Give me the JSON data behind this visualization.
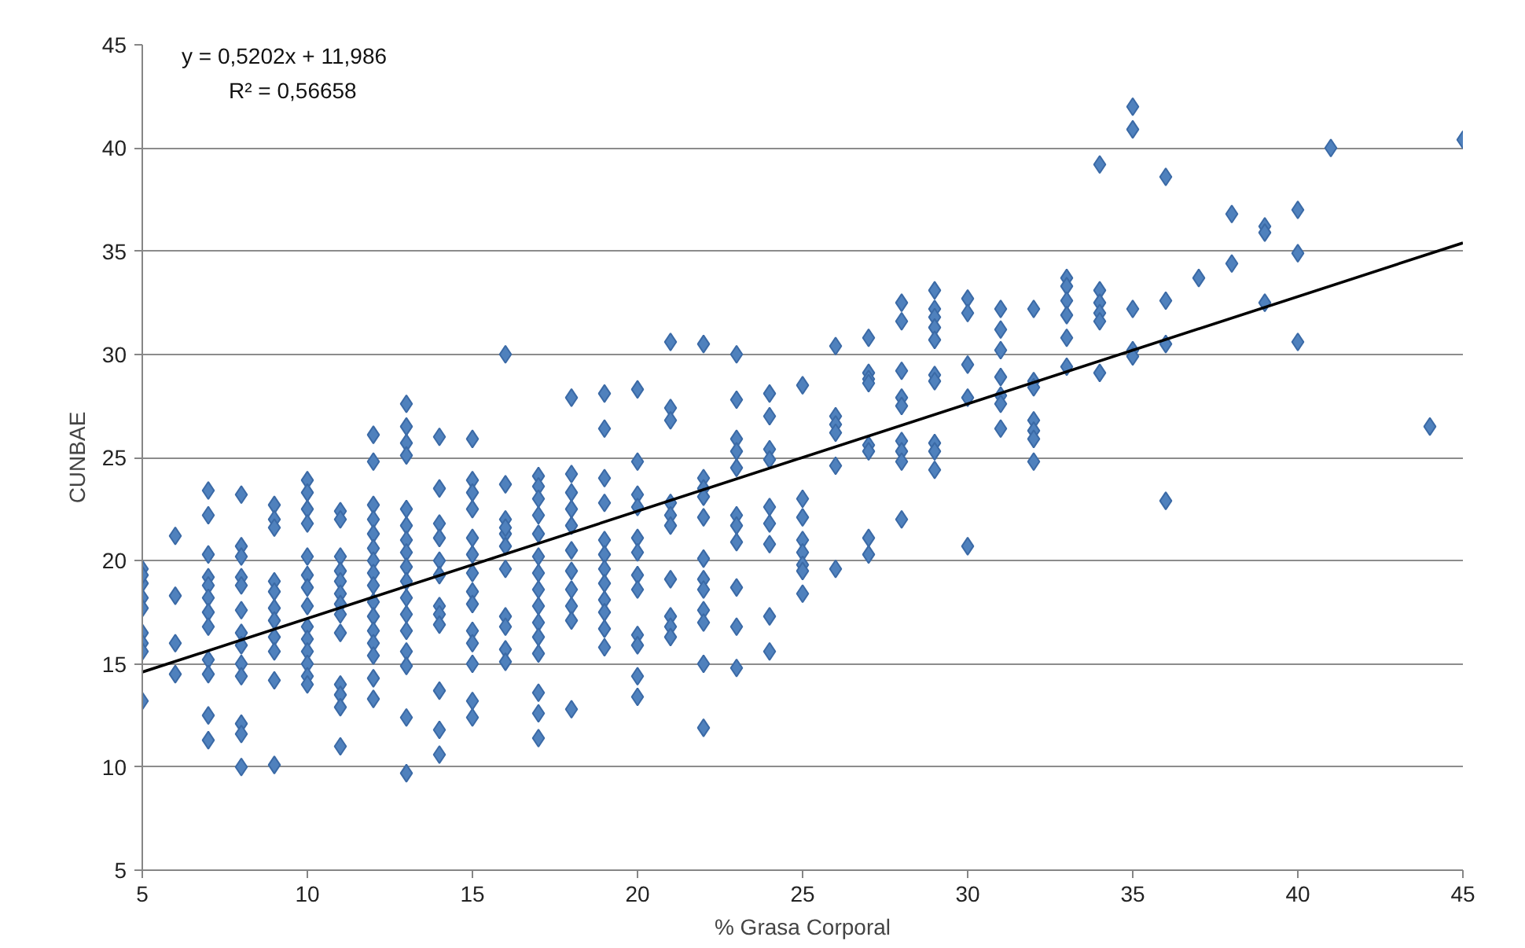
{
  "chart_data": {
    "type": "scatter",
    "xlabel": "% Grasa Corporal",
    "ylabel": "CUNBAE",
    "annotations": [
      "y = 0,5202x + 11,986",
      "R² = 0,56658"
    ],
    "xlim": [
      5,
      45
    ],
    "ylim": [
      5,
      45
    ],
    "xticks": [
      5,
      10,
      15,
      20,
      25,
      30,
      35,
      40,
      45
    ],
    "yticks": [
      5,
      10,
      15,
      20,
      25,
      30,
      35,
      40,
      45
    ],
    "grid": "y",
    "marker": "diamond",
    "series": [
      {
        "color": "#4f81bd",
        "x": [
          5,
          5,
          5,
          5,
          5,
          5,
          5,
          5,
          5,
          6,
          6,
          6,
          6,
          7,
          7,
          7,
          7,
          7,
          7,
          7,
          7,
          7,
          7,
          7,
          7,
          8,
          8,
          8,
          8,
          8,
          8,
          8,
          8,
          8,
          8,
          8,
          8,
          8,
          9,
          9,
          9,
          9,
          9,
          9,
          9,
          9,
          9,
          9,
          9,
          10,
          10,
          10,
          10,
          10,
          10,
          10,
          10,
          10,
          10,
          10,
          10,
          10,
          10,
          11,
          11,
          11,
          11,
          11,
          11,
          11,
          11,
          11,
          11,
          11,
          11,
          11,
          12,
          12,
          12,
          12,
          12,
          12,
          12,
          12,
          12,
          12,
          12,
          12,
          12,
          12,
          12,
          12,
          13,
          13,
          13,
          13,
          13,
          13,
          13,
          13,
          13,
          13,
          13,
          13,
          13,
          13,
          13,
          13,
          13,
          14,
          14,
          14,
          14,
          14,
          14,
          14,
          14,
          14,
          14,
          14,
          14,
          15,
          15,
          15,
          15,
          15,
          15,
          15,
          15,
          15,
          15,
          15,
          15,
          15,
          15,
          16,
          16,
          16,
          16,
          16,
          16,
          16,
          16,
          16,
          16,
          16,
          17,
          17,
          17,
          17,
          17,
          17,
          17,
          17,
          17,
          17,
          17,
          17,
          17,
          17,
          17,
          18,
          18,
          18,
          18,
          18,
          18,
          18,
          18,
          18,
          18,
          18,
          19,
          19,
          19,
          19,
          19,
          19,
          19,
          19,
          19,
          19,
          19,
          19,
          20,
          20,
          20,
          20,
          20,
          20,
          20,
          20,
          20,
          20,
          20,
          20,
          21,
          21,
          21,
          21,
          21,
          21,
          21,
          21,
          21,
          21,
          22,
          22,
          22,
          22,
          22,
          22,
          22,
          22,
          22,
          22,
          22,
          22,
          23,
          23,
          23,
          23,
          23,
          23,
          23,
          23,
          23,
          23,
          23,
          24,
          24,
          24,
          24,
          24,
          24,
          24,
          24,
          24,
          25,
          25,
          25,
          25,
          25,
          25,
          25,
          25,
          26,
          26,
          26,
          26,
          26,
          26,
          27,
          27,
          27,
          27,
          27,
          27,
          27,
          27,
          28,
          28,
          28,
          28,
          28,
          28,
          28,
          28,
          28,
          29,
          29,
          29,
          29,
          29,
          29,
          29,
          29,
          29,
          29,
          30,
          30,
          30,
          30,
          30,
          31,
          31,
          31,
          31,
          31,
          31,
          31,
          32,
          32,
          32,
          32,
          32,
          32,
          32,
          33,
          33,
          33,
          33,
          33,
          33,
          34,
          34,
          34,
          34,
          34,
          34,
          35,
          35,
          35,
          35,
          35,
          36,
          36,
          36,
          36,
          37,
          38,
          38,
          39,
          39,
          39,
          40,
          40,
          40,
          41,
          44,
          45
        ],
        "values": [
          19.6,
          18.9,
          18.2,
          17.7,
          16.5,
          16.0,
          15.6,
          13.2,
          19.3,
          21.2,
          18.3,
          16.0,
          14.5,
          23.4,
          22.2,
          20.3,
          19.2,
          18.8,
          18.2,
          17.5,
          16.8,
          15.2,
          14.5,
          12.5,
          11.3,
          23.2,
          20.7,
          20.2,
          19.2,
          18.8,
          17.6,
          16.5,
          15.9,
          15.0,
          14.4,
          12.1,
          11.6,
          10.0,
          22.7,
          22.0,
          21.6,
          19.0,
          18.5,
          17.7,
          17.1,
          16.3,
          15.6,
          14.2,
          10.1,
          23.9,
          23.3,
          22.5,
          21.8,
          20.2,
          19.3,
          18.7,
          17.8,
          16.8,
          16.2,
          15.6,
          15.0,
          14.4,
          14.0,
          22.4,
          22.0,
          20.2,
          19.5,
          19.0,
          18.4,
          17.9,
          17.4,
          16.5,
          14.0,
          13.5,
          12.9,
          11.0,
          26.1,
          24.8,
          22.7,
          22.0,
          21.3,
          20.6,
          20.0,
          19.4,
          18.8,
          18.0,
          17.3,
          16.6,
          16.0,
          15.4,
          14.3,
          13.3,
          27.6,
          26.5,
          25.7,
          25.1,
          22.5,
          21.7,
          21.0,
          20.4,
          19.7,
          19.0,
          18.2,
          17.4,
          16.6,
          15.6,
          14.9,
          12.4,
          9.7,
          26.0,
          23.5,
          21.8,
          21.1,
          20.0,
          19.3,
          17.8,
          17.4,
          16.9,
          13.7,
          11.8,
          10.6,
          25.9,
          23.9,
          23.3,
          22.5,
          21.1,
          20.3,
          19.4,
          18.5,
          17.9,
          16.6,
          16.0,
          15.0,
          13.2,
          12.4,
          30.0,
          23.7,
          22.0,
          21.3,
          20.7,
          19.6,
          17.3,
          16.8,
          15.7,
          15.1,
          21.6,
          24.1,
          23.6,
          23.0,
          22.2,
          21.3,
          20.2,
          19.4,
          18.6,
          17.8,
          17.0,
          16.3,
          15.5,
          13.6,
          12.6,
          11.4,
          27.9,
          24.2,
          23.3,
          22.5,
          21.7,
          20.5,
          19.5,
          18.6,
          17.8,
          17.1,
          12.8,
          28.1,
          26.4,
          24.0,
          22.8,
          21.0,
          20.3,
          19.6,
          18.9,
          18.1,
          17.5,
          16.7,
          15.8,
          28.3,
          24.8,
          23.2,
          22.6,
          21.1,
          20.4,
          19.3,
          18.6,
          16.4,
          15.9,
          14.4,
          13.4,
          30.6,
          27.4,
          26.8,
          22.8,
          22.2,
          21.7,
          19.1,
          17.3,
          16.8,
          16.3,
          30.5,
          24.0,
          23.5,
          23.1,
          22.1,
          20.1,
          19.1,
          18.6,
          17.6,
          17.0,
          15.0,
          11.9,
          30.0,
          27.8,
          25.9,
          25.3,
          24.5,
          22.2,
          21.7,
          20.9,
          18.7,
          16.8,
          14.8,
          28.1,
          27.0,
          25.4,
          24.9,
          22.6,
          21.8,
          20.8,
          17.3,
          15.6,
          28.5,
          23.0,
          22.1,
          21.0,
          20.4,
          19.8,
          19.5,
          18.4,
          30.4,
          27.0,
          26.6,
          26.2,
          24.6,
          19.6,
          30.8,
          29.1,
          28.8,
          28.6,
          25.6,
          25.3,
          21.1,
          20.3,
          32.5,
          31.6,
          29.2,
          27.9,
          27.5,
          25.8,
          25.3,
          24.8,
          22.0,
          33.1,
          32.2,
          31.8,
          31.3,
          30.7,
          29.0,
          28.7,
          25.7,
          25.3,
          24.4,
          32.7,
          32.0,
          29.5,
          27.9,
          20.7,
          32.2,
          31.2,
          30.2,
          28.9,
          28.0,
          27.6,
          26.4,
          32.2,
          28.7,
          28.4,
          26.8,
          26.3,
          25.9,
          24.8,
          33.7,
          33.3,
          32.6,
          31.9,
          30.8,
          29.4,
          39.2,
          33.1,
          32.5,
          32.0,
          31.6,
          29.1,
          42.0,
          40.9,
          32.2,
          30.2,
          29.9,
          38.6,
          32.6,
          30.5,
          22.9,
          33.7,
          36.8,
          34.4,
          36.2,
          35.9,
          32.5,
          37.0,
          34.9,
          30.6,
          40.0,
          26.5,
          40.4
        ]
      },
      {
        "type": "line",
        "color": "#000000",
        "line_style": "solid",
        "marker": "none",
        "x": [
          5,
          45
        ],
        "values": [
          14.6,
          35.4
        ]
      }
    ]
  }
}
